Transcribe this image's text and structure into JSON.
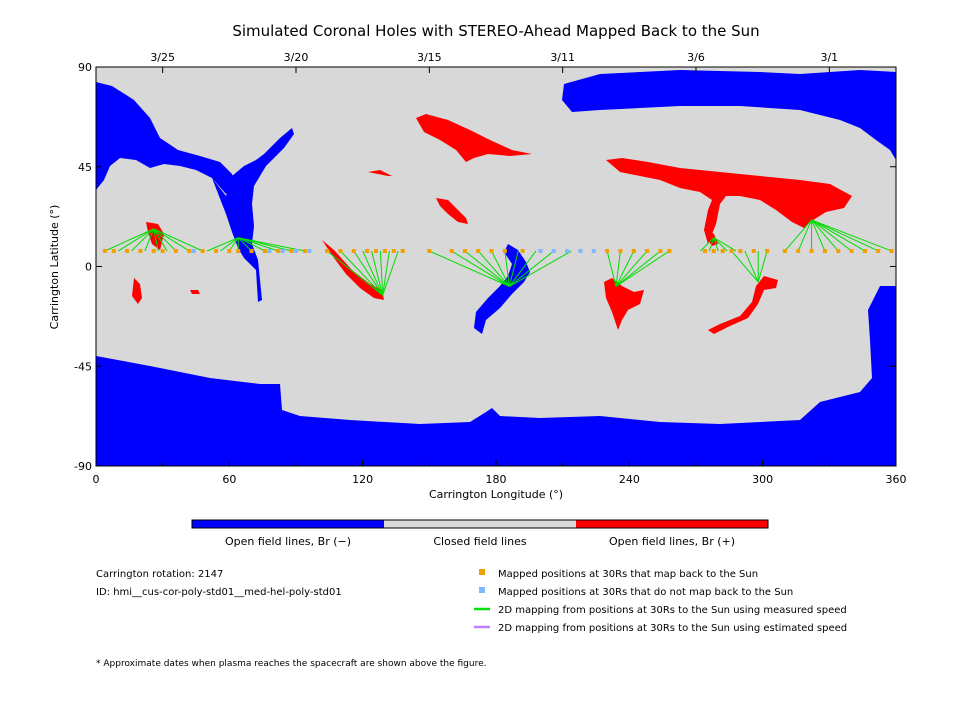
{
  "chart_data": {
    "type": "map",
    "title": "Simulated Coronal Holes with STEREO-Ahead Mapped Back to the Sun",
    "xlabel": "Carrington Longitude (°)",
    "ylabel": "Carrington Latitude (°)",
    "xlim": [
      0,
      360
    ],
    "ylim": [
      -90,
      90
    ],
    "x_ticks": [
      "0",
      "60",
      "120",
      "180",
      "240",
      "300",
      "360"
    ],
    "x_tick_values": [
      0,
      60,
      120,
      180,
      240,
      300,
      360
    ],
    "y_ticks": [
      "90",
      "45",
      "0",
      "-45",
      "-90"
    ],
    "y_tick_values": [
      90,
      45,
      0,
      -45,
      -90
    ],
    "date_ticks": [
      {
        "label": "3/25",
        "lon": 30
      },
      {
        "label": "3/20",
        "lon": 90
      },
      {
        "label": "3/15",
        "lon": 150
      },
      {
        "label": "3/11",
        "lon": 210
      },
      {
        "label": "3/6",
        "lon": 270
      },
      {
        "label": "3/1",
        "lon": 330
      }
    ],
    "colorbar": [
      {
        "label": "Open field lines, Br (−)",
        "color": "#0000ff"
      },
      {
        "label": "Closed field lines",
        "color": "#d8d8d8"
      },
      {
        "label": "Open field lines, Br (+)",
        "color": "#ff0000"
      }
    ],
    "info": {
      "rotation": "Carrington rotation: 2147",
      "id": "ID: hmi__cus-cor-poly-std01__med-hel-poly-std01"
    },
    "legend": [
      {
        "label": "Mapped positions at 30Rs that map back to the Sun",
        "color": "#f0a000",
        "marker": "square"
      },
      {
        "label": "Mapped positions at 30Rs that do not map back to the Sun",
        "color": "#80b8ff",
        "marker": "square"
      },
      {
        "label": "2D mapping from positions at 30Rs to the Sun using measured speed",
        "color": "#00dd00",
        "marker": "line"
      },
      {
        "label": "2D mapping from positions at 30Rs to the Sun using estimated speed",
        "color": "#c080ff",
        "marker": "line"
      }
    ],
    "footnote": "* Approximate dates when plasma reaches the spacecraft are shown above the figure.",
    "mapped_latitude": 7,
    "mapped_positions": [
      4,
      8,
      14,
      20,
      26,
      30,
      36,
      42,
      48,
      54,
      60,
      64,
      70,
      76,
      82,
      88,
      94,
      104,
      110,
      116,
      122,
      126,
      130,
      134,
      138,
      150,
      160,
      166,
      172,
      178,
      184,
      192,
      230,
      236,
      242,
      248,
      254,
      258,
      274,
      278,
      282,
      286,
      290,
      296,
      302,
      310,
      316,
      322,
      328,
      334,
      340,
      346,
      352,
      358
    ],
    "unmapped_positions": [
      44,
      78,
      84,
      90,
      96,
      200,
      206,
      212,
      218,
      224
    ],
    "mapping_groups": [
      {
        "target": [
          26,
          17
        ],
        "sources": [
          4,
          10,
          16,
          22,
          28,
          32,
          36,
          42,
          48
        ]
      },
      {
        "target": [
          64,
          13
        ],
        "sources": [
          50,
          56,
          60,
          64,
          70,
          76,
          82,
          88,
          94
        ]
      },
      {
        "target": [
          129,
          -13
        ],
        "sources": [
          104,
          110,
          116,
          120,
          124,
          128,
          132,
          136
        ]
      },
      {
        "target": [
          186,
          -9
        ],
        "sources": [
          150,
          160,
          166,
          172,
          178,
          184,
          190,
          198,
          206,
          214
        ]
      },
      {
        "target": [
          234,
          -9
        ],
        "sources": [
          230,
          236,
          242,
          248,
          254,
          258
        ]
      },
      {
        "target": [
          278,
          13
        ],
        "sources": [
          272,
          276,
          280,
          284,
          288
        ]
      },
      {
        "target": [
          298,
          -7
        ],
        "sources": [
          286,
          292,
          298,
          302
        ]
      },
      {
        "target": [
          322,
          21
        ],
        "sources": [
          310,
          316,
          322,
          328,
          334,
          340,
          346,
          352,
          358
        ]
      }
    ]
  }
}
